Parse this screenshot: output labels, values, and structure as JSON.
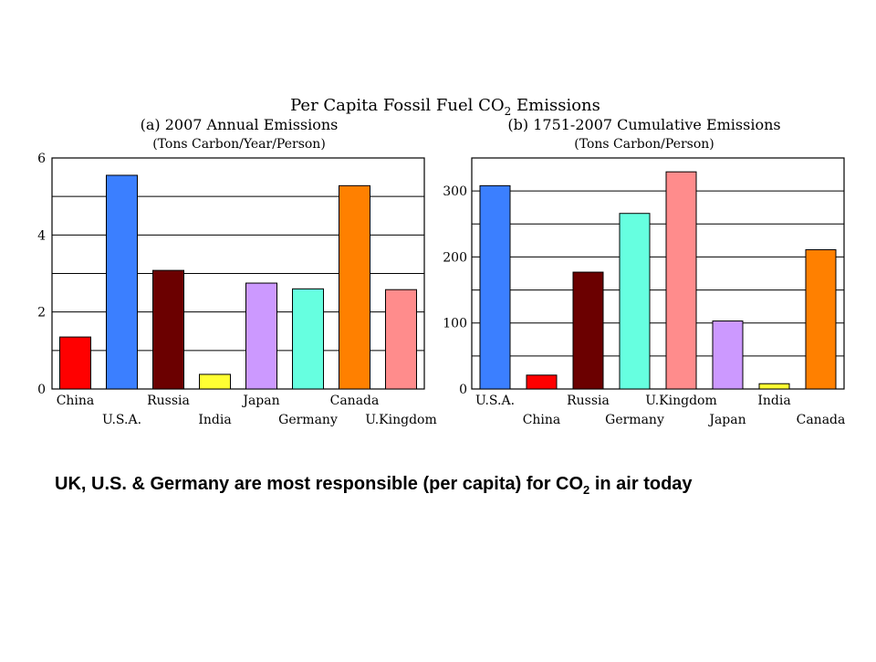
{
  "figure": {
    "title_main": "Per Capita Fossil Fuel CO",
    "title_sub": "2",
    "title_end": " Emissions"
  },
  "caption": {
    "main": "UK, U.S. & Germany are most responsible (per capita) for CO",
    "sub": "2",
    "end": " in air today"
  },
  "chart_data": [
    {
      "type": "bar",
      "title": "(a)  2007 Annual Emissions",
      "subtitle": "(Tons Carbon/Year/Person)",
      "categories": [
        "China",
        "U.S.A.",
        "Russia",
        "India",
        "Japan",
        "Germany",
        "Canada",
        "U.Kingdom"
      ],
      "values": [
        1.35,
        5.55,
        3.08,
        0.38,
        2.75,
        2.6,
        5.28,
        2.58
      ],
      "colors": [
        "#ff0000",
        "#3b7fff",
        "#6b0000",
        "#ffff33",
        "#cc99ff",
        "#66ffe0",
        "#ff8000",
        "#ff8c8c"
      ],
      "ylim": [
        0,
        6
      ],
      "yticks": [
        0,
        2,
        4,
        6
      ],
      "gridlines": [
        0,
        1,
        2,
        3,
        4,
        5,
        6
      ],
      "grid": true,
      "xlabel": "",
      "ylabel": ""
    },
    {
      "type": "bar",
      "title": "(b)  1751-2007 Cumulative Emissions",
      "subtitle": "(Tons Carbon/Person)",
      "categories": [
        "U.S.A.",
        "China",
        "Russia",
        "Germany",
        "U.Kingdom",
        "Japan",
        "India",
        "Canada"
      ],
      "values": [
        308,
        21,
        177,
        266,
        329,
        103,
        8,
        211
      ],
      "colors": [
        "#3b7fff",
        "#ff0000",
        "#6b0000",
        "#66ffe0",
        "#ff8c8c",
        "#cc99ff",
        "#ffff33",
        "#ff8000"
      ],
      "ylim": [
        0,
        350
      ],
      "yticks": [
        0,
        100,
        200,
        300
      ],
      "gridlines": [
        0,
        50,
        100,
        150,
        200,
        250,
        300,
        350
      ],
      "grid": true,
      "xlabel": "",
      "ylabel": ""
    }
  ]
}
